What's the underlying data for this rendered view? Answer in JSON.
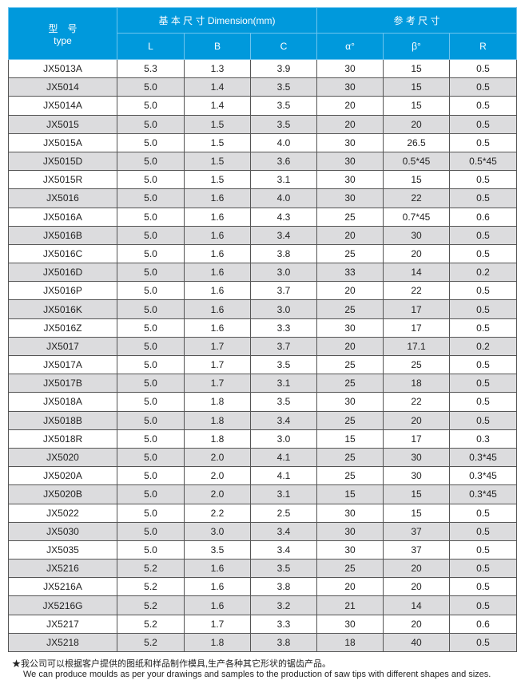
{
  "header": {
    "type_cn": "型　号",
    "type_en": "type",
    "dimension": "基 本 尺 寸 Dimension(mm)",
    "reference": "参 考 尺 寸",
    "cols": [
      "L",
      "B",
      "C",
      "α°",
      "β°",
      "R"
    ]
  },
  "rows": [
    [
      "JX5013A",
      "5.3",
      "1.3",
      "3.9",
      "30",
      "15",
      "0.5"
    ],
    [
      "JX5014",
      "5.0",
      "1.4",
      "3.5",
      "30",
      "15",
      "0.5"
    ],
    [
      "JX5014A",
      "5.0",
      "1.4",
      "3.5",
      "20",
      "15",
      "0.5"
    ],
    [
      "JX5015",
      "5.0",
      "1.5",
      "3.5",
      "20",
      "20",
      "0.5"
    ],
    [
      "JX5015A",
      "5.0",
      "1.5",
      "4.0",
      "30",
      "26.5",
      "0.5"
    ],
    [
      "JX5015D",
      "5.0",
      "1.5",
      "3.6",
      "30",
      "0.5*45",
      "0.5*45"
    ],
    [
      "JX5015R",
      "5.0",
      "1.5",
      "3.1",
      "30",
      "15",
      "0.5"
    ],
    [
      "JX5016",
      "5.0",
      "1.6",
      "4.0",
      "30",
      "22",
      "0.5"
    ],
    [
      "JX5016A",
      "5.0",
      "1.6",
      "4.3",
      "25",
      "0.7*45",
      "0.6"
    ],
    [
      "JX5016B",
      "5.0",
      "1.6",
      "3.4",
      "20",
      "30",
      "0.5"
    ],
    [
      "JX5016C",
      "5.0",
      "1.6",
      "3.8",
      "25",
      "20",
      "0.5"
    ],
    [
      "JX5016D",
      "5.0",
      "1.6",
      "3.0",
      "33",
      "14",
      "0.2"
    ],
    [
      "JX5016P",
      "5.0",
      "1.6",
      "3.7",
      "20",
      "22",
      "0.5"
    ],
    [
      "JX5016K",
      "5.0",
      "1.6",
      "3.0",
      "25",
      "17",
      "0.5"
    ],
    [
      "JX5016Z",
      "5.0",
      "1.6",
      "3.3",
      "30",
      "17",
      "0.5"
    ],
    [
      "JX5017",
      "5.0",
      "1.7",
      "3.7",
      "20",
      "17.1",
      "0.2"
    ],
    [
      "JX5017A",
      "5.0",
      "1.7",
      "3.5",
      "25",
      "25",
      "0.5"
    ],
    [
      "JX5017B",
      "5.0",
      "1.7",
      "3.1",
      "25",
      "18",
      "0.5"
    ],
    [
      "JX5018A",
      "5.0",
      "1.8",
      "3.5",
      "30",
      "22",
      "0.5"
    ],
    [
      "JX5018B",
      "5.0",
      "1.8",
      "3.4",
      "25",
      "20",
      "0.5"
    ],
    [
      "JX5018R",
      "5.0",
      "1.8",
      "3.0",
      "15",
      "17",
      "0.3"
    ],
    [
      "JX5020",
      "5.0",
      "2.0",
      "4.1",
      "25",
      "30",
      "0.3*45"
    ],
    [
      "JX5020A",
      "5.0",
      "2.0",
      "4.1",
      "25",
      "30",
      "0.3*45"
    ],
    [
      "JX5020B",
      "5.0",
      "2.0",
      "3.1",
      "15",
      "15",
      "0.3*45"
    ],
    [
      "JX5022",
      "5.0",
      "2.2",
      "2.5",
      "30",
      "15",
      "0.5"
    ],
    [
      "JX5030",
      "5.0",
      "3.0",
      "3.4",
      "30",
      "37",
      "0.5"
    ],
    [
      "JX5035",
      "5.0",
      "3.5",
      "3.4",
      "30",
      "37",
      "0.5"
    ],
    [
      "JX5216",
      "5.2",
      "1.6",
      "3.5",
      "25",
      "20",
      "0.5"
    ],
    [
      "JX5216A",
      "5.2",
      "1.6",
      "3.8",
      "20",
      "20",
      "0.5"
    ],
    [
      "JX5216G",
      "5.2",
      "1.6",
      "3.2",
      "21",
      "14",
      "0.5"
    ],
    [
      "JX5217",
      "5.2",
      "1.7",
      "3.3",
      "30",
      "20",
      "0.6"
    ],
    [
      "JX5218",
      "5.2",
      "1.8",
      "3.8",
      "18",
      "40",
      "0.5"
    ]
  ],
  "note": {
    "cn": "★我公司可以根据客户提供的图纸和样品制作模具,生产各种其它形状的锯齿产品。",
    "en": "We can produce moulds as per your drawings and samples to the production of saw tips with different shapes and sizes."
  },
  "colors": {
    "header": "#0099dc",
    "alt_row": "#dcdcde"
  }
}
